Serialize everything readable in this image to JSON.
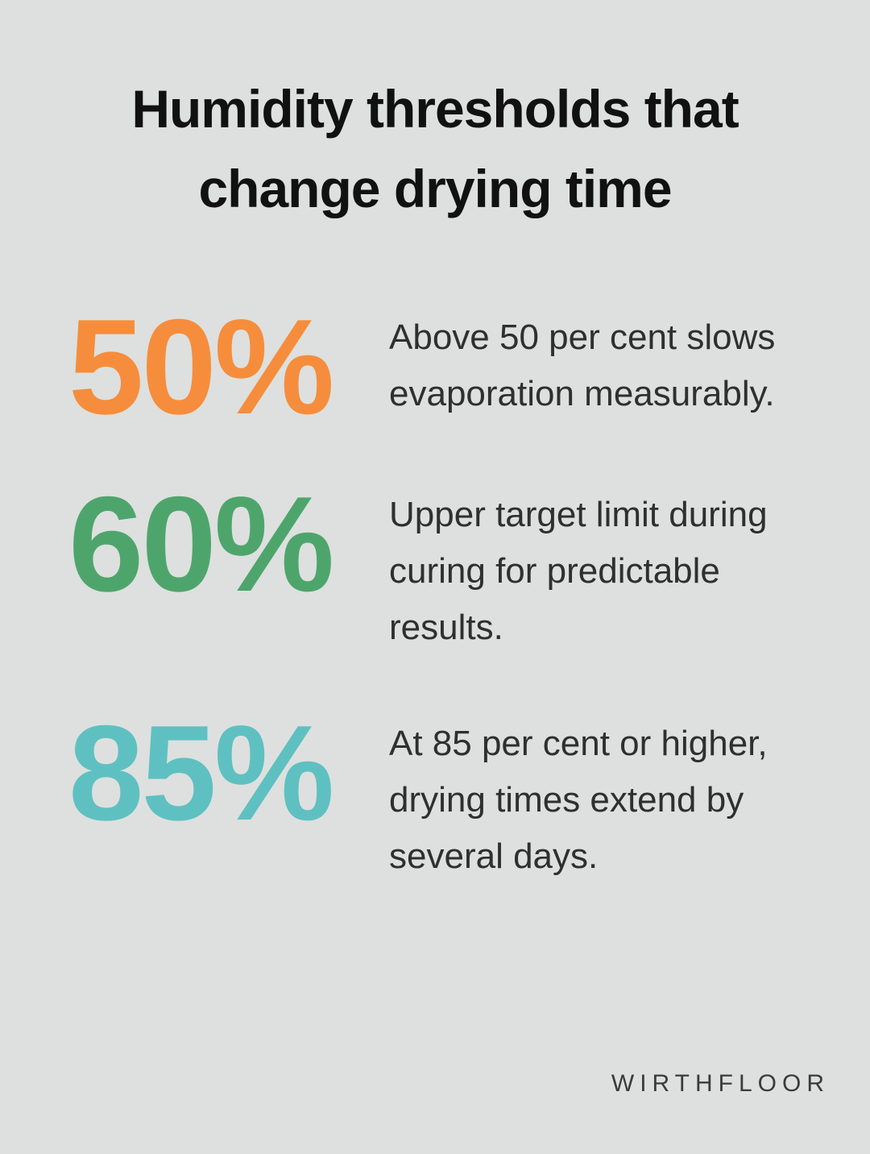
{
  "page": {
    "background_color": "#dde0de"
  },
  "title": {
    "lines": [
      "Humidity thresholds that",
      "change drying time"
    ],
    "full_text": "Humidity thresholds that change drying time"
  },
  "stats": [
    {
      "value": "50%",
      "color": "#f68d3c",
      "description": "Above 50 per cent slows evaporation measurably."
    },
    {
      "value": "60%",
      "color": "#4ea56c",
      "description": "Upper target limit during curing for predictable results."
    },
    {
      "value": "85%",
      "color": "#5fc0c2",
      "description": "At 85 per cent or higher, drying times extend by several days."
    }
  ],
  "footer": {
    "brand": "WIRTHFLOOR"
  }
}
